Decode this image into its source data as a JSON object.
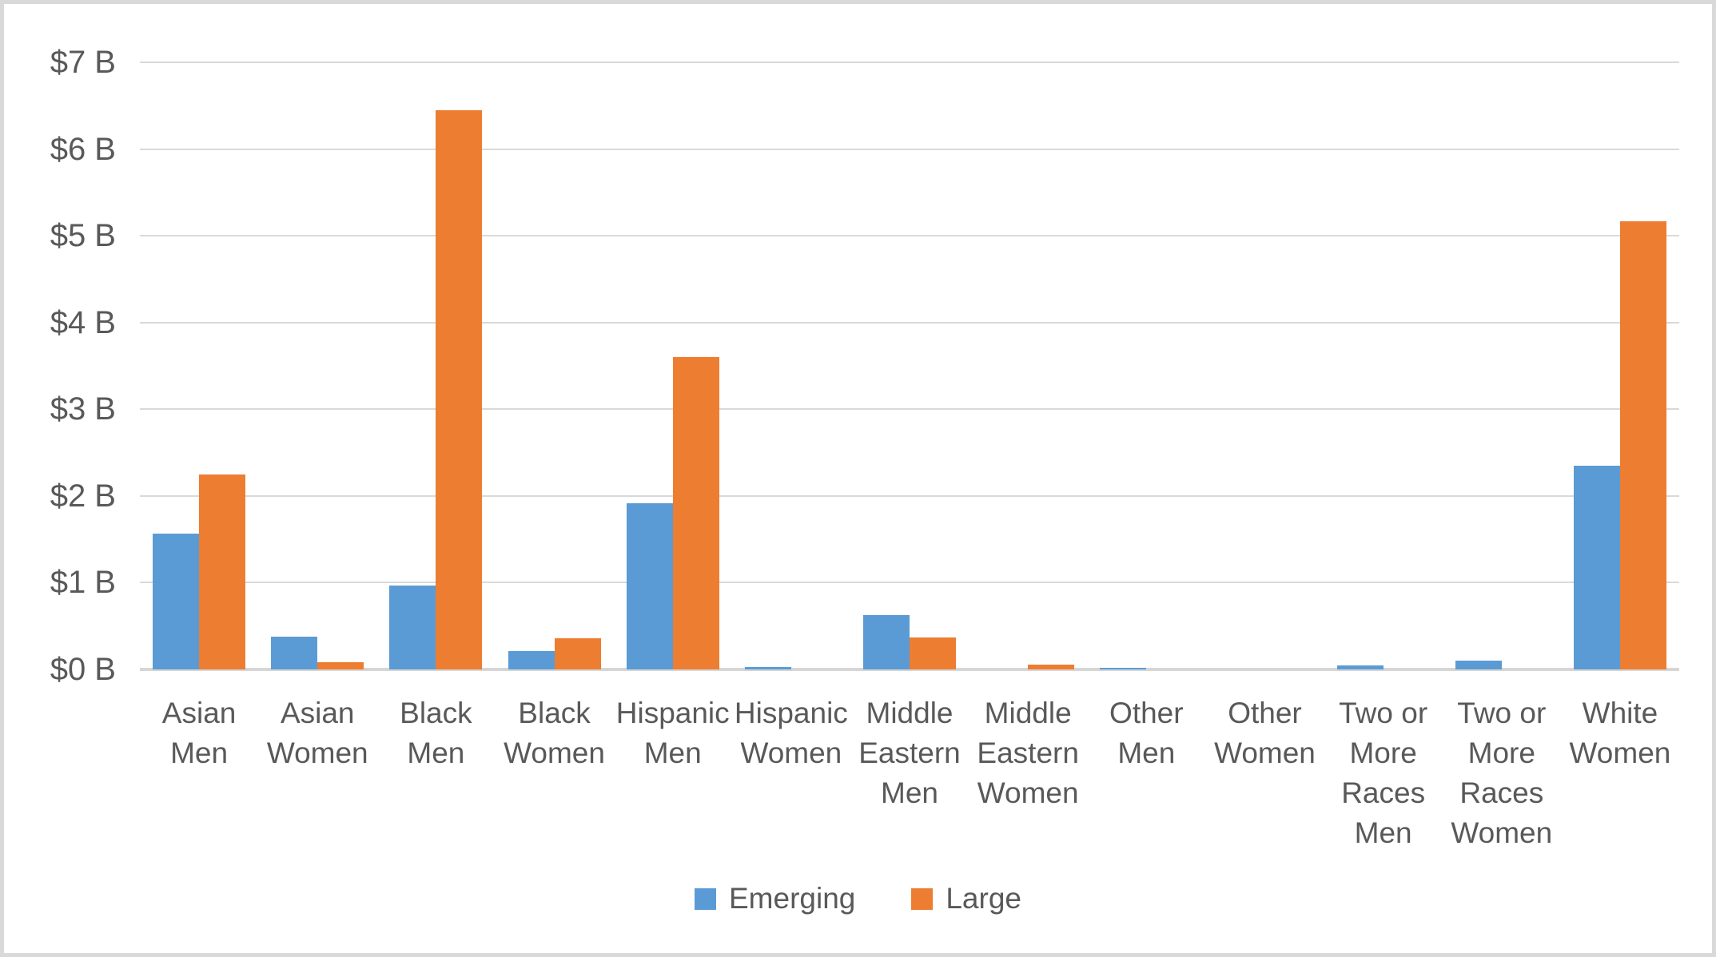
{
  "chart_data": {
    "type": "bar",
    "title": "",
    "xlabel": "",
    "ylabel": "",
    "ylim": [
      0,
      7
    ],
    "ytick_step": 1,
    "grid": true,
    "legend_position": "bottom",
    "currency_unit": "billions USD",
    "ytick_labels": [
      "$0 B",
      "$1 B",
      "$2 B",
      "$3 B",
      "$4 B",
      "$5 B",
      "$6 B",
      "$7 B"
    ],
    "categories": [
      "Asian Men",
      "Asian Women",
      "Black Men",
      "Black Women",
      "Hispanic Men",
      "Hispanic Women",
      "Middle Eastern Men",
      "Middle Eastern Women",
      "Other Men",
      "Other Women",
      "Two or More Races Men",
      "Two or More Races Women",
      "White Women"
    ],
    "categories_wrapped": [
      "Asian\nMen",
      "Asian\nWomen",
      "Black\nMen",
      "Black\nWomen",
      "Hispanic\nMen",
      "Hispanic\nWomen",
      "Middle\nEastern\nMen",
      "Middle\nEastern\nWomen",
      "Other\nMen",
      "Other\nWomen",
      "Two or\nMore\nRaces\nMen",
      "Two or\nMore\nRaces\nWomen",
      "White\nWomen"
    ],
    "series": [
      {
        "name": "Emerging",
        "color": "#5B9BD5",
        "values": [
          1.57,
          0.38,
          0.97,
          0.21,
          1.92,
          0.03,
          0.63,
          0,
          0.02,
          0,
          0.05,
          0.1,
          2.35
        ]
      },
      {
        "name": "Large",
        "color": "#ED7D31",
        "values": [
          2.25,
          0.08,
          6.45,
          0.36,
          3.6,
          0,
          0.37,
          0.06,
          0,
          0,
          0,
          0,
          5.17
        ]
      }
    ]
  },
  "colors": {
    "text": "#595959",
    "gridline": "#D9D9D9",
    "frame_border": "#D9D9D9",
    "background": "#FFFFFF"
  }
}
